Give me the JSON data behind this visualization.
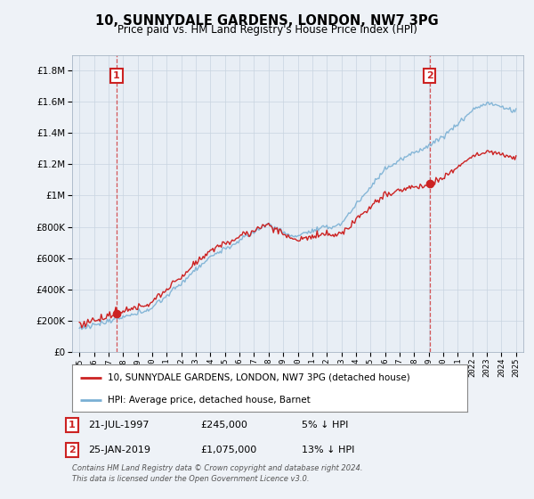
{
  "title": "10, SUNNYDALE GARDENS, LONDON, NW7 3PG",
  "subtitle": "Price paid vs. HM Land Registry's House Price Index (HPI)",
  "ytick_values": [
    0,
    200000,
    400000,
    600000,
    800000,
    1000000,
    1200000,
    1400000,
    1600000,
    1800000
  ],
  "ylim": [
    0,
    1900000
  ],
  "xlim": [
    1994.5,
    2025.5
  ],
  "xticks": [
    1995,
    1996,
    1997,
    1998,
    1999,
    2000,
    2001,
    2002,
    2003,
    2004,
    2005,
    2006,
    2007,
    2008,
    2009,
    2010,
    2011,
    2012,
    2013,
    2014,
    2015,
    2016,
    2017,
    2018,
    2019,
    2020,
    2021,
    2022,
    2023,
    2024,
    2025
  ],
  "hpi_color": "#7ab0d4",
  "price_color": "#cc2222",
  "sale1_x": 1997.55,
  "sale1_y": 245000,
  "sale1_label": "1",
  "sale1_date": "21-JUL-1997",
  "sale1_price": "£245,000",
  "sale1_pct": "5% ↓ HPI",
  "sale2_x": 2019.07,
  "sale2_y": 1075000,
  "sale2_label": "2",
  "sale2_date": "25-JAN-2019",
  "sale2_price": "£1,075,000",
  "sale2_pct": "13% ↓ HPI",
  "legend_line1": "10, SUNNYDALE GARDENS, LONDON, NW7 3PG (detached house)",
  "legend_line2": "HPI: Average price, detached house, Barnet",
  "footnote1": "Contains HM Land Registry data © Crown copyright and database right 2024.",
  "footnote2": "This data is licensed under the Open Government Licence v3.0.",
  "background_color": "#eef2f7",
  "plot_bg_color": "#e8eef5",
  "grid_color": "#c8d4e0"
}
